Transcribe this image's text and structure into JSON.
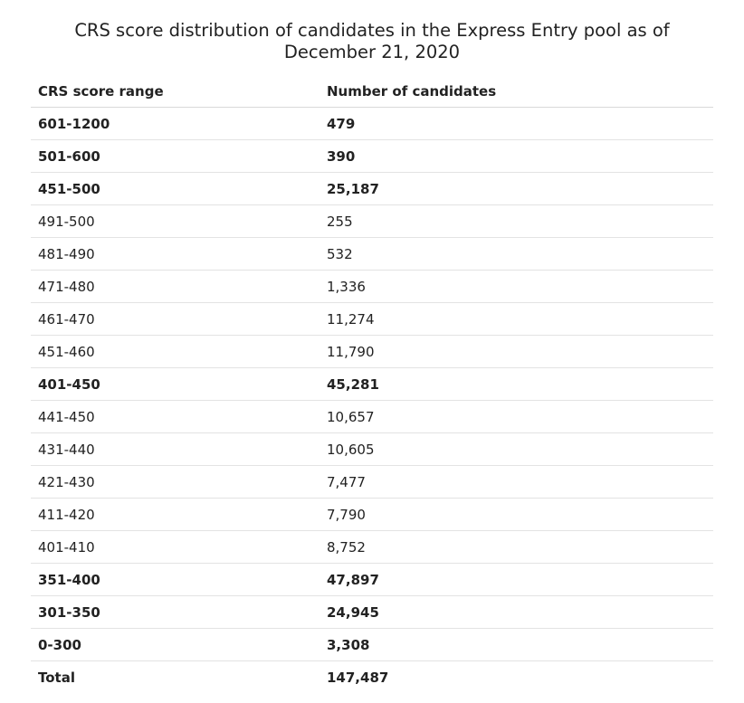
{
  "title": "CRS score distribution of candidates in the Express Entry pool as of December 21, 2020",
  "table": {
    "headers": [
      "CRS score range",
      "Number of candidates"
    ],
    "rows": [
      {
        "range": "601-1200",
        "count": "479",
        "bold": true
      },
      {
        "range": "501-600",
        "count": "390",
        "bold": true
      },
      {
        "range": "451-500",
        "count": "25,187",
        "bold": true
      },
      {
        "range": "491-500",
        "count": "255",
        "bold": false
      },
      {
        "range": "481-490",
        "count": "532",
        "bold": false
      },
      {
        "range": "471-480",
        "count": "1,336",
        "bold": false
      },
      {
        "range": "461-470",
        "count": "11,274",
        "bold": false
      },
      {
        "range": "451-460",
        "count": "11,790",
        "bold": false
      },
      {
        "range": "401-450",
        "count": "45,281",
        "bold": true
      },
      {
        "range": "441-450",
        "count": "10,657",
        "bold": false
      },
      {
        "range": "431-440",
        "count": "10,605",
        "bold": false
      },
      {
        "range": "421-430",
        "count": "7,477",
        "bold": false
      },
      {
        "range": "411-420",
        "count": "7,790",
        "bold": false
      },
      {
        "range": "401-410",
        "count": "8,752",
        "bold": false
      },
      {
        "range": "351-400",
        "count": "47,897",
        "bold": true
      },
      {
        "range": "301-350",
        "count": "24,945",
        "bold": true
      },
      {
        "range": "0-300",
        "count": "3,308",
        "bold": true
      }
    ],
    "total": {
      "label": "Total",
      "count": "147,487"
    }
  }
}
